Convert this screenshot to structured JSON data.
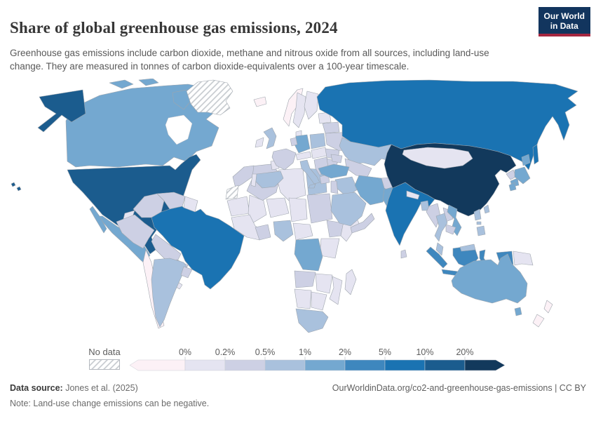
{
  "header": {
    "title": "Share of global greenhouse gas emissions, 2024",
    "subtitle": "Greenhouse gas emissions include carbon dioxide, methane and nitrous oxide from all sources, including land-use change. They are measured in tonnes of carbon dioxide-equivalents over a 100-year timescale.",
    "logo": {
      "line1": "Our World",
      "line2": "in Data",
      "bg_color": "#12355e",
      "accent_color": "#a52740"
    }
  },
  "legend": {
    "no_data_label": "No data",
    "tick_labels": [
      "0%",
      "0.2%",
      "0.5%",
      "1%",
      "2%",
      "5%",
      "10%",
      "20%"
    ],
    "bin_colors": [
      "#fcf1f6",
      "#e5e4f1",
      "#cdd0e4",
      "#a9c1dd",
      "#74a8d0",
      "#3e87be",
      "#1a73b2",
      "#1b5c8e",
      "#12395c"
    ]
  },
  "footer": {
    "source_label": "Data source:",
    "source_value": " Jones et al. (2025)",
    "note_label": "Note:",
    "note_value": " Land-use change emissions can be negative.",
    "link": "OurWorldinData.org/co2-and-greenhouse-gas-emissions | CC BY"
  },
  "chart_data": {
    "type": "choropleth_map",
    "title": "Share of global greenhouse gas emissions, 2024",
    "year": 2024,
    "unit": "% of global greenhouse gas emissions",
    "legend_bins": [
      "<0%",
      "0-0.2%",
      "0.2-0.5%",
      "0.5-1%",
      "1-2%",
      "2-5%",
      "5-10%",
      "10-20%",
      ">20%"
    ],
    "no_data_style": "hatched",
    "region_bins": {
      "usa": 7,
      "canada": 4,
      "mexico": 4,
      "greenland": "nd",
      "central_america": 1,
      "cuba": 1,
      "hispaniola": 1,
      "colombia": 2,
      "venezuela": 2,
      "guyanas": 1,
      "brazil": 6,
      "ecuador": 1,
      "peru": 2,
      "bolivia": 2,
      "paraguay": 2,
      "chile": 0,
      "argentina": 3,
      "uruguay": 2,
      "morocco": 2,
      "western_sahara": "nd",
      "algeria": 2,
      "tunisia": 1,
      "libya": 1,
      "egypt": 3,
      "mauritania": 1,
      "mali": 1,
      "niger": 1,
      "chad": 1,
      "sudan": 2,
      "ethiopia": 2,
      "somalia": 1,
      "west_africa": 1,
      "ghana_ivory": 2,
      "nigeria": 3,
      "cameroon_car": 1,
      "kenya_tanzania": 1,
      "drc": 4,
      "angola": 2,
      "zambia_zimbabwe": 1,
      "mozambique": 1,
      "namibia": 1,
      "botswana": 1,
      "south_africa": 3,
      "madagascar": 1,
      "iceland": 0,
      "norway": 0,
      "sweden": 1,
      "finland": 1,
      "denmark": 1,
      "uk": 3,
      "ireland": 1,
      "france": 2,
      "spain": 3,
      "portugal": 1,
      "germany": 4,
      "benelux": 2,
      "alpine": 1,
      "italy": 3,
      "poland": 3,
      "czech_hungary": 1,
      "balkans": 2,
      "greece": 2,
      "romania": 2,
      "bulgaria": 2,
      "ukraine": 2,
      "belarus": 2,
      "baltics": 1,
      "russia": 6,
      "kazakhstan": 3,
      "central_asia": 2,
      "caucasus": 2,
      "turkey": 4,
      "iraq_syria": 3,
      "levant": 2,
      "iran": 4,
      "saudi_arabia": 3,
      "yemen_oman": 2,
      "afghanistan": 2,
      "pakistan": 4,
      "india": 6,
      "sri_lanka": 2,
      "nepal": 1,
      "bangladesh": 3,
      "china": 8,
      "mongolia": 1,
      "taiwan": 3,
      "north_korea": 2,
      "south_korea": 4,
      "japan": 4,
      "myanmar": 2,
      "thailand": 3,
      "laos": 2,
      "vietnam": 4,
      "cambodia": 2,
      "malaysia": 3,
      "philippines": 3,
      "indonesia": 5,
      "papua_new_guinea": 1,
      "australia": 4,
      "new_zealand": 0
    }
  }
}
